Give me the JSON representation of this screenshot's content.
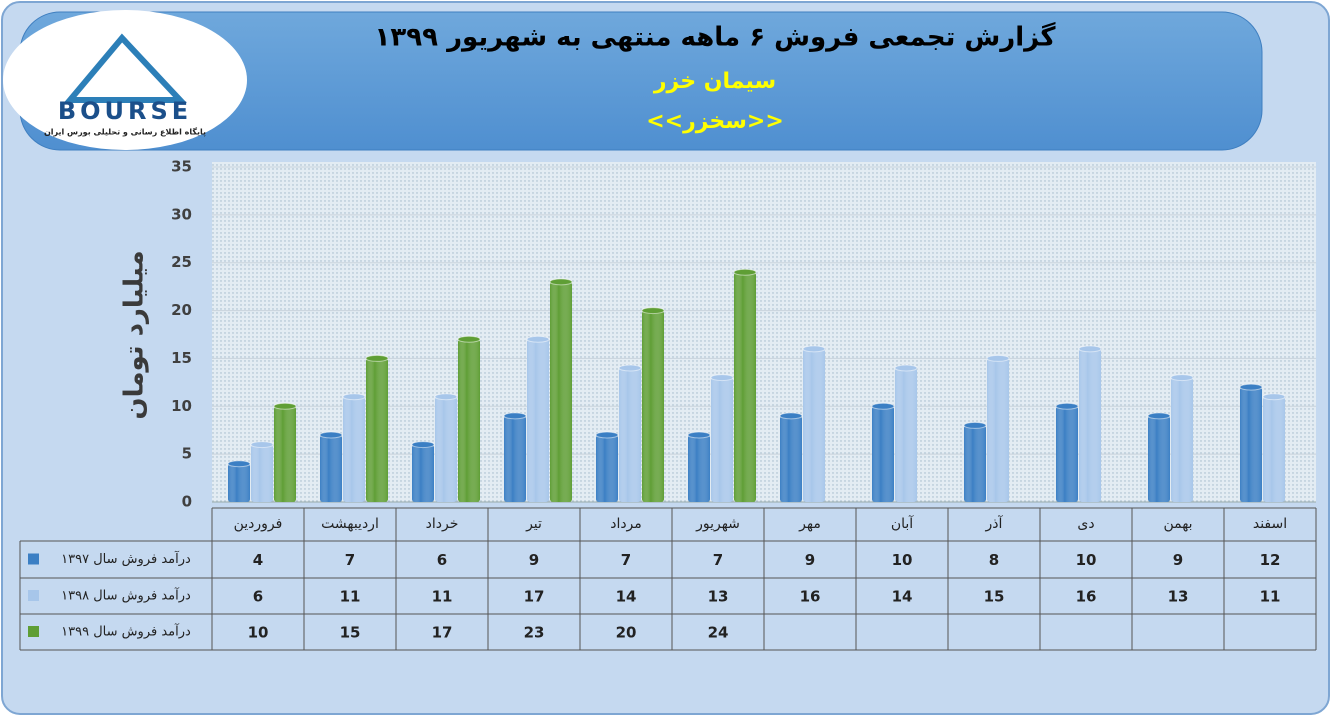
{
  "logo": {
    "name": "BOURSE",
    "tagline": "پایگاه اطلاع رسانی و تحلیلی بورس ایران"
  },
  "chart_data": {
    "type": "bar",
    "title": "گزارش تجمعی فروش ۶ ماهه منتهی به شهریور ۱۳۹۹",
    "subtitle": "سیمان خزر",
    "symbol": "<<سخزر>>",
    "y_label": "میلیارد تومان",
    "categories": [
      "فروردین",
      "اردیبهشت",
      "خرداد",
      "تیر",
      "مرداد",
      "شهریور",
      "مهر",
      "آبان",
      "آذر",
      "دی",
      "بهمن",
      "اسفند"
    ],
    "series": [
      {
        "name": "درآمد فروش سال ۱۳۹۷",
        "color": "#3b7fc4",
        "values": [
          4,
          7,
          6,
          9,
          7,
          7,
          9,
          10,
          8,
          10,
          9,
          12
        ]
      },
      {
        "name": "درآمد فروش سال ۱۳۹۸",
        "color": "#a7c6ea",
        "values": [
          6,
          11,
          11,
          17,
          14,
          13,
          16,
          14,
          15,
          16,
          13,
          11
        ]
      },
      {
        "name": "درآمد فروش سال ۱۳۹۹",
        "color": "#5f9e35",
        "values": [
          10,
          15,
          17,
          23,
          20,
          24,
          null,
          null,
          null,
          null,
          null,
          null
        ]
      }
    ],
    "ylim": [
      0,
      35
    ],
    "yticks": [
      0,
      5,
      10,
      15,
      20,
      25,
      30,
      35
    ],
    "grid": true
  }
}
